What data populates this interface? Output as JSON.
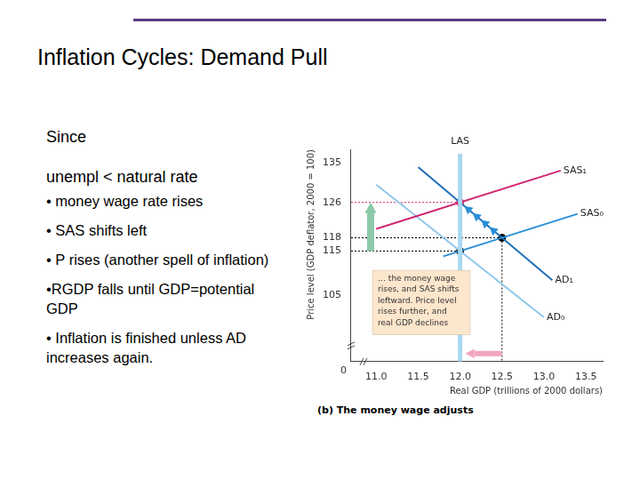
{
  "slide": {
    "title": "Inflation Cycles: Demand Pull",
    "intro": [
      "Since",
      "unempl < natural rate"
    ],
    "bullets": [
      "• money wage rate rises",
      "• SAS shifts left",
      "• P rises (another spell of inflation)",
      "•RGDP falls until GDP=potential GDP",
      "•  Inflation is finished unless AD increases again."
    ]
  },
  "chart_data": {
    "type": "line",
    "xlabel": "Real GDP (trillions of 2000 dollars)",
    "ylabel": "Price level (GDP deflator, 2000 = 100)",
    "caption": "(b) The money wage adjusts",
    "origin_label": "0",
    "xlim": [
      10.7,
      13.7
    ],
    "xticks": [
      {
        "value": 11,
        "label": "11.0"
      },
      11.5,
      {
        "value": 12,
        "label": "12.0"
      },
      12.5,
      {
        "value": 13,
        "label": "13.0"
      },
      13.5
    ],
    "ylim": [
      90,
      138
    ],
    "yticks": [
      105,
      115,
      118,
      126,
      135
    ],
    "grid": false,
    "series": [
      {
        "name": "LAS",
        "color": "#a9d8f2",
        "x": [
          12,
          12
        ],
        "values": [
          90,
          137
        ]
      },
      {
        "name": "SAS₁",
        "color": "#d0266f",
        "x": [
          11.0,
          13.2
        ],
        "values": [
          120,
          133.2
        ]
      },
      {
        "name": "SAS₀",
        "color": "#2a8fd8",
        "x": [
          11.8,
          13.4
        ],
        "values": [
          113.8,
          123.4
        ]
      },
      {
        "name": "AD₁",
        "color": "#1f6fb8",
        "x": [
          11.5,
          13.1
        ],
        "values": [
          134,
          108.4
        ]
      },
      {
        "name": "AD₀",
        "color": "#8fc6ea",
        "x": [
          11.0,
          13.0
        ],
        "values": [
          130,
          100
        ]
      }
    ],
    "points": {
      "x": [
        12,
        12.5,
        12
      ],
      "values": [
        115,
        118,
        126
      ],
      "colors": [
        "#000000",
        "#000000",
        "#d0266f"
      ]
    },
    "annotation": [
      "… the money wage",
      "rises, and SAS shifts",
      "leftward. Price level",
      "rises further, and",
      "real GDP declines"
    ]
  }
}
